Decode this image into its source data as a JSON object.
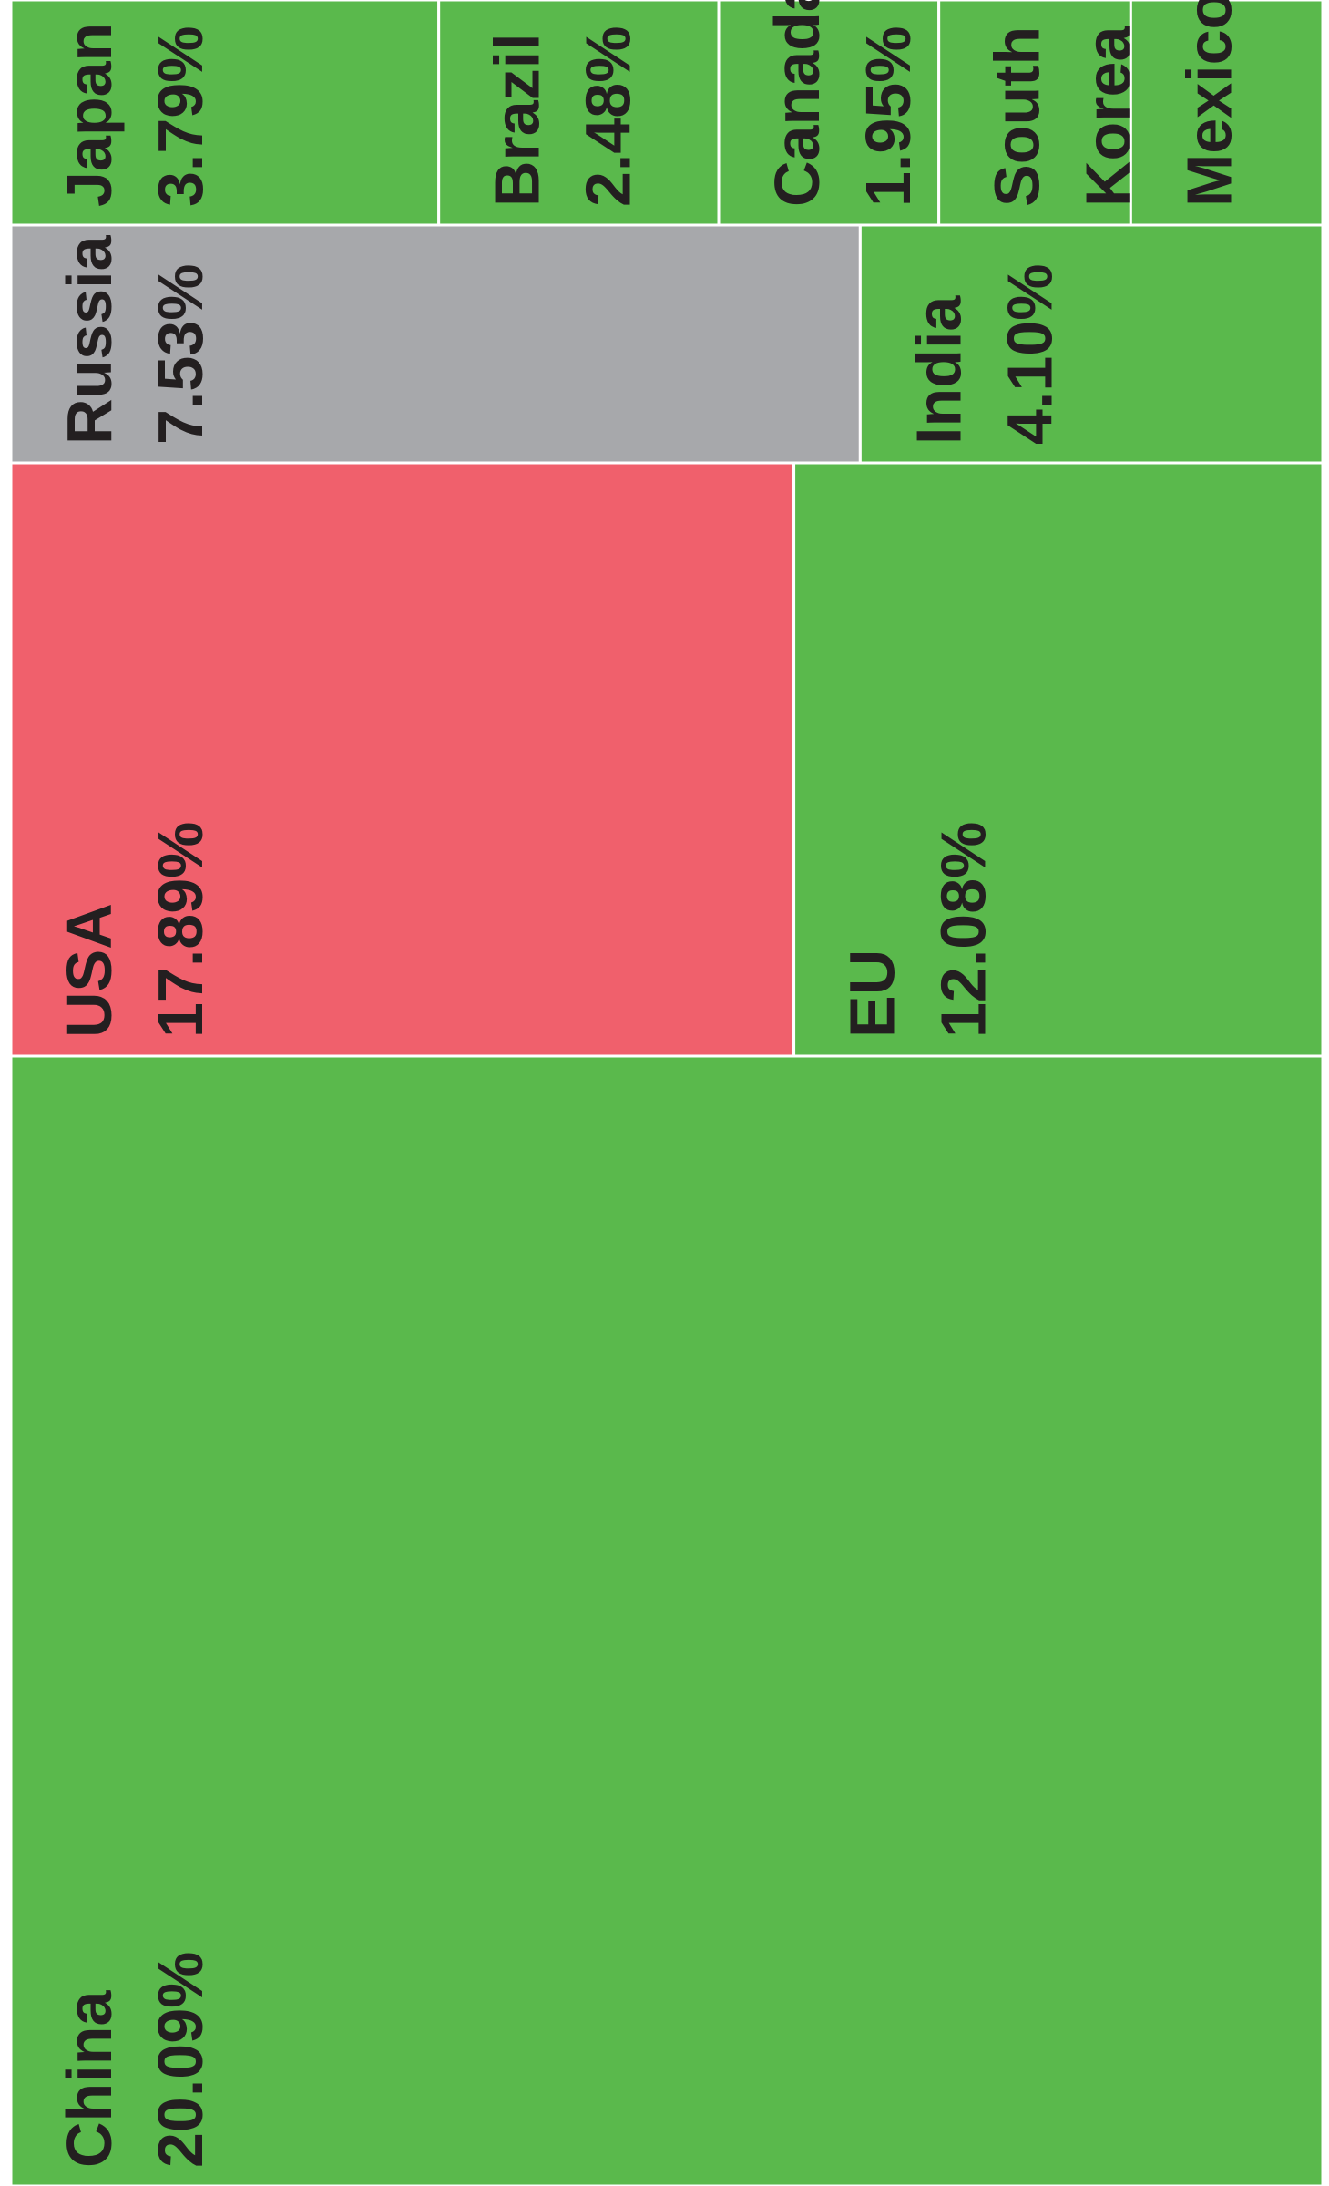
{
  "chart_data": {
    "type": "treemap",
    "categories": [
      "China",
      "USA",
      "EU",
      "Russia",
      "India",
      "Japan",
      "Brazil",
      "Canada",
      "South Korea",
      "Mexico"
    ],
    "values": [
      20.09,
      17.89,
      12.08,
      7.53,
      4.1,
      3.79,
      2.48,
      1.95,
      1.7,
      1.7
    ],
    "value_labels": [
      "20.09%",
      "17.89%",
      "12.08%",
      "7.53%",
      "4.10%",
      "3.79%",
      "2.48%",
      "1.95%",
      null,
      null
    ],
    "colors": [
      "#5ab94c",
      "#f0606c",
      "#5ab94c",
      "#a7a8ab",
      "#5ab94c",
      "#5ab94c",
      "#5ab94c",
      "#5ab94c",
      "#5ab94c",
      "#5ab94c"
    ]
  }
}
